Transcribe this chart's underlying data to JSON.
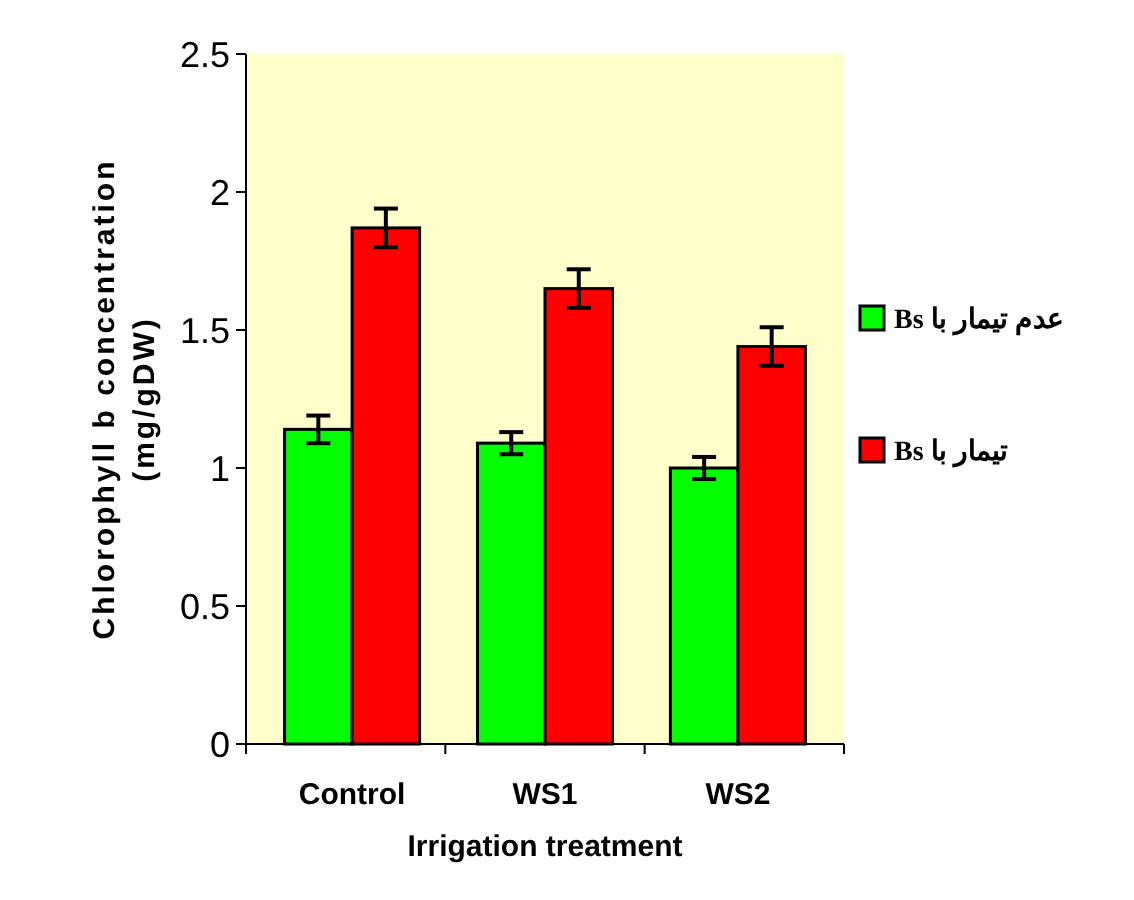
{
  "chart_data": {
    "type": "bar",
    "xlabel": "Irrigation treatment",
    "ylabel": "Chlorophyll b concentration\n(mg/gDW)",
    "categories": [
      "Control",
      "WS1",
      "WS2"
    ],
    "series": [
      {
        "name": "عدم تیمار با Bs",
        "color": "#00ff00",
        "values": [
          1.14,
          1.09,
          1.0
        ],
        "errors": [
          0.05,
          0.04,
          0.04
        ]
      },
      {
        "name": "تیمار با Bs",
        "color": "#ff0000",
        "values": [
          1.87,
          1.65,
          1.44
        ],
        "errors": [
          0.07,
          0.07,
          0.07
        ]
      }
    ],
    "ylim": [
      0,
      2.5
    ],
    "yticks": [
      0,
      0.5,
      1,
      1.5,
      2,
      2.5
    ],
    "grid": false,
    "legend": "right"
  }
}
